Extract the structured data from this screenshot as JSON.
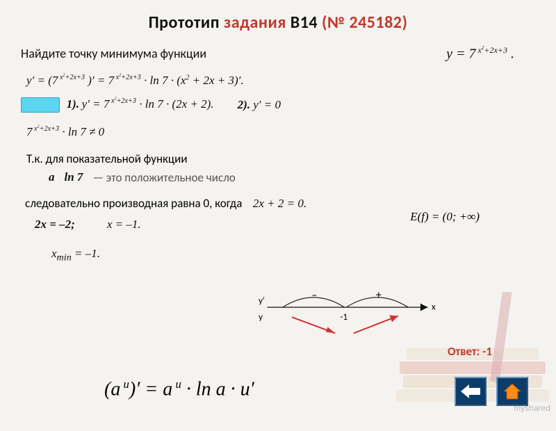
{
  "title": {
    "word1": "Прототип",
    "word2": "задания",
    "word3": "B14",
    "number": "(№ 245182)"
  },
  "prompt": "Найдите точку минимума функции",
  "main_formula_html": "<i>y</i> = 7<sup>&nbsp;<i>x</i><sup>2</sup>+2<i>x</i>+3</sup> .",
  "line1": "y′ = (7<sup> x<sup>2</sup>+2x+3</sup> )′ = 7<sup> x<sup>2</sup>+2x+3</sup> · ln 7 · (x<sup>2</sup> + 2x + 3)′.",
  "step1_num": "1).",
  "step1": "y′ = 7<sup> x<sup>2</sup>+2x+3</sup> · ln 7 · (2x + 2).",
  "step2_num": "2).",
  "step2": "y′ = 0",
  "line2": "7<sup> x<sup>2</sup>+2x+3</sup> · ln 7 ≠ 0",
  "note1": "Т.к. для показательной функции",
  "range": "E(f) = (0; +∞)",
  "a_label": "a",
  "ln7": "ln 7",
  "a_desc": "— это положительное число",
  "followup": "следовательно производная равна 0, когда",
  "eq_deriv": "2x + 2 = 0.",
  "solve1": "2x = –2;",
  "solve2": "x = –1.",
  "xmin": "x<sub>min</sub> = –1.",
  "numberline": {
    "y_prime": "y′",
    "y_label": "y",
    "x_label": "x",
    "minus": "–",
    "plus": "+",
    "crit": "-1",
    "axis_color": "#111",
    "arc_color": "#111",
    "arrow_color": "#d32f2f"
  },
  "answer_label": "Ответ:",
  "answer_value": "-1",
  "rule": "(a<sup> u</sup>)′ = a<sup> u</sup> · ln a · u′",
  "watermark": "myshared",
  "colors": {
    "red": "#c0392b",
    "cyan": "#5cd6f0",
    "nav": "#0a3d6b",
    "home_icon": "#ff8c1a"
  }
}
